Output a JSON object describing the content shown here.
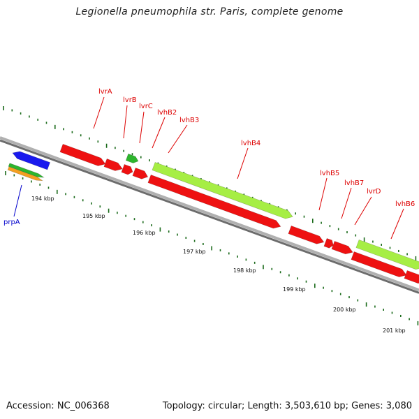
{
  "title": "Legionella pneumophila str. Paris, complete genome",
  "footer": {
    "accession": "Accession: NC_006368",
    "summary": "Topology: circular; Length: 3,503,610 bp; Genes: 3,080"
  },
  "colors": {
    "backbone": "#808080",
    "tick": "#1a6a1a",
    "red_gene": "#ee1111",
    "green_gene": "#2db52d",
    "lime_gene": "#a6ee44",
    "blue_gene": "#1a1aee",
    "orange_gene": "#f5a020",
    "red_label": "#dd0000",
    "blue_label": "#0000cc"
  },
  "ruler": {
    "labels": [
      "194 kbp",
      "195 kbp",
      "196 kbp",
      "197 kbp",
      "198 kbp",
      "199 kbp",
      "200 kbp",
      "201 kbp"
    ]
  },
  "genes": [
    {
      "label": "lvrA",
      "color": "red"
    },
    {
      "label": "lvrB",
      "color": "green"
    },
    {
      "label": "lvrC",
      "color": "red"
    },
    {
      "label": "lvhB2",
      "color": "red"
    },
    {
      "label": "lvhB3",
      "color": "red"
    },
    {
      "label": "lvhB4",
      "color": "lime"
    },
    {
      "label": "lvhB5",
      "color": "red"
    },
    {
      "label": "lvhB7",
      "color": "red"
    },
    {
      "label": "lvrD",
      "color": "red"
    },
    {
      "label": "lvhB6",
      "color": "lime"
    },
    {
      "label": "prpA",
      "color": "blue"
    }
  ]
}
